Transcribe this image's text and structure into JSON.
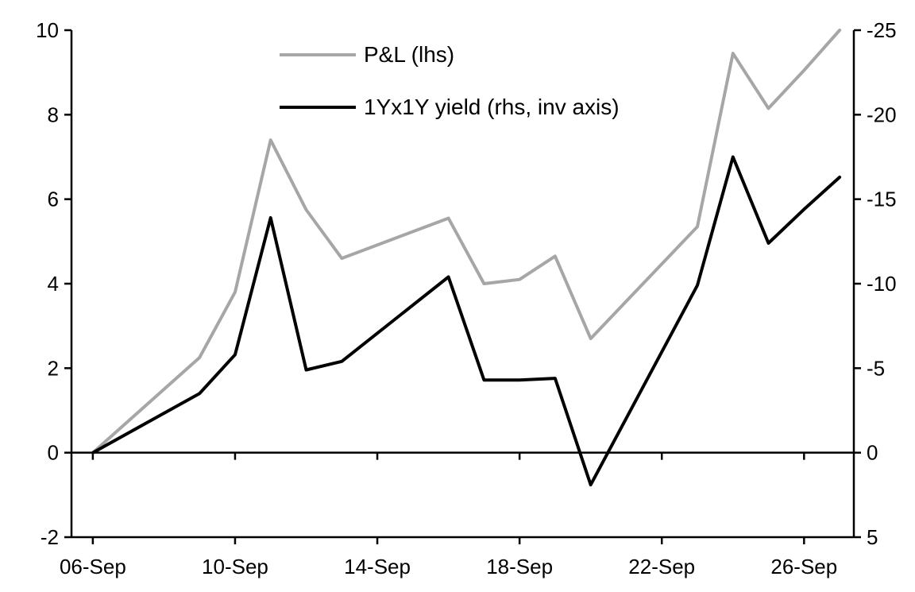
{
  "background": "#ffffff",
  "chart_data": {
    "type": "line",
    "title": "",
    "x_dates": [
      "06-Sep",
      "09-Sep",
      "10-Sep",
      "11-Sep",
      "12-Sep",
      "13-Sep",
      "16-Sep",
      "17-Sep",
      "18-Sep",
      "19-Sep",
      "20-Sep",
      "23-Sep",
      "24-Sep",
      "25-Sep",
      "26-Sep",
      "27-Sep"
    ],
    "x_days": [
      6,
      9,
      10,
      11,
      12,
      13,
      16,
      17,
      18,
      19,
      20,
      23,
      24,
      25,
      26,
      27
    ],
    "series": [
      {
        "name": "P&L (lhs)",
        "axis": "left",
        "color": "#a6a6a6",
        "values": [
          0,
          2.25,
          3.8,
          7.4,
          5.75,
          4.6,
          5.55,
          4.0,
          4.1,
          4.65,
          2.7,
          5.35,
          9.45,
          8.15,
          9.05,
          10.0
        ]
      },
      {
        "name": "1Yx1Y yield (rhs, inv axis)",
        "axis": "right",
        "color": "#000000",
        "values": [
          0,
          -3.5,
          -5.8,
          -13.9,
          -4.9,
          -5.4,
          -10.4,
          -4.3,
          -4.3,
          -4.4,
          1.9,
          -9.9,
          -17.5,
          -12.4,
          -14.4,
          -16.3
        ]
      }
    ],
    "left_axis": {
      "min": -2,
      "max": 10,
      "ticks": [
        10,
        8,
        6,
        4,
        2,
        0,
        -2
      ]
    },
    "right_axis": {
      "top": -25,
      "bottom": 5,
      "inverted": true,
      "ticks": [
        -25,
        -20,
        -15,
        -10,
        -5,
        0,
        5
      ]
    },
    "x_axis": {
      "min_day": 5.4,
      "max_day": 27.4,
      "tick_days": [
        6,
        10,
        14,
        18,
        22,
        26
      ],
      "tick_labels": [
        "06-Sep",
        "10-Sep",
        "14-Sep",
        "18-Sep",
        "22-Sep",
        "26-Sep"
      ]
    },
    "axis_color": "#000000",
    "grid": "off",
    "legend_position": "top-center-inside"
  }
}
